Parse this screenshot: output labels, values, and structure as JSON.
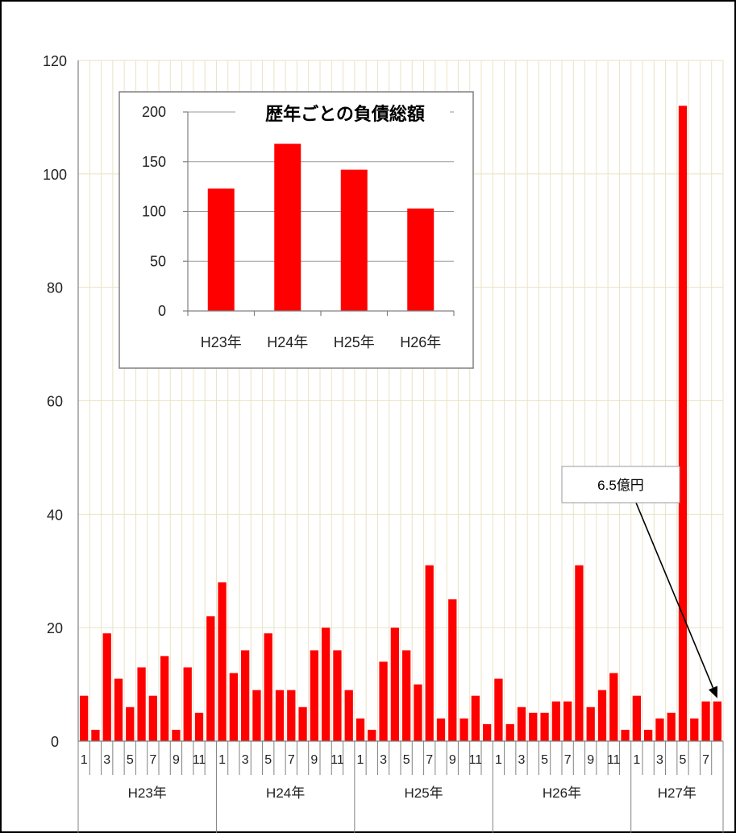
{
  "colors": {
    "bar": "#ff0000",
    "grid_main": "#e9e3c5",
    "grid_inset": "#9a9a9a",
    "axis": "#808080",
    "text": "#222222"
  },
  "chart_data": [
    {
      "type": "bar",
      "title": "",
      "xlabel": "",
      "ylabel": "",
      "ylim": [
        0,
        120
      ],
      "yticks": [
        0,
        20,
        40,
        60,
        80,
        100,
        120
      ],
      "grid": true,
      "month_ticks": [
        "1",
        "",
        "3",
        "",
        "5",
        "",
        "7",
        "",
        "9",
        "",
        "11",
        "",
        "1",
        "",
        "3",
        "",
        "5",
        "",
        "7",
        "",
        "9",
        "",
        "11",
        "",
        "1",
        "",
        "3",
        "",
        "5",
        "",
        "7",
        "",
        "9",
        "",
        "11",
        "",
        "1",
        "",
        "3",
        "",
        "5",
        "",
        "7",
        "",
        "9",
        "",
        "11",
        "",
        "1",
        "",
        "3",
        "",
        "5",
        "",
        "7",
        ""
      ],
      "year_groups": [
        {
          "label": "H23年",
          "months": 12
        },
        {
          "label": "H24年",
          "months": 12
        },
        {
          "label": "H25年",
          "months": 12
        },
        {
          "label": "H26年",
          "months": 12
        },
        {
          "label": "H27年",
          "months": 8
        }
      ],
      "values": [
        8,
        2,
        19,
        11,
        6,
        13,
        8,
        15,
        2,
        13,
        5,
        22,
        28,
        12,
        16,
        9,
        19,
        9,
        9,
        6,
        16,
        20,
        16,
        9,
        4,
        2,
        14,
        20,
        16,
        10,
        31,
        4,
        25,
        4,
        8,
        3,
        11,
        3,
        6,
        5,
        5,
        7,
        7,
        31,
        6,
        9,
        12,
        2,
        8,
        2,
        4,
        5,
        112,
        4,
        7,
        7
      ],
      "annotation": {
        "text": "6.5億円",
        "points_to_index": 55
      }
    },
    {
      "type": "bar",
      "title": "歴年ごとの負債総額",
      "xlabel": "",
      "ylabel": "",
      "ylim": [
        0,
        200
      ],
      "yticks": [
        0,
        50,
        100,
        150,
        200
      ],
      "grid": true,
      "categories": [
        "H23年",
        "H24年",
        "H25年",
        "H26年"
      ],
      "values": [
        123,
        168,
        142,
        103
      ]
    }
  ]
}
